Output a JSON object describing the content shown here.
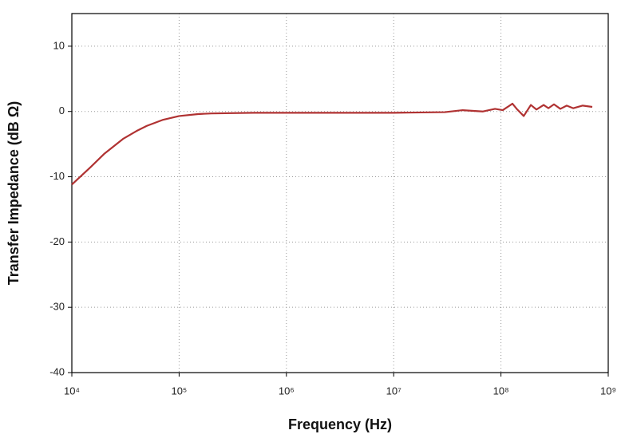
{
  "chart_data": {
    "type": "line",
    "xlabel": "Frequency (Hz)",
    "ylabel": "Transfer Impedance (dB Ω)",
    "xscale": "log",
    "grid": true,
    "xlim": [
      10000,
      1000000000
    ],
    "xticks": [
      {
        "value": 10000,
        "label": "10⁴"
      },
      {
        "value": 100000,
        "label": "10⁵"
      },
      {
        "value": 1000000,
        "label": "10⁶"
      },
      {
        "value": 10000000,
        "label": "10⁷"
      },
      {
        "value": 100000000,
        "label": "10⁸"
      },
      {
        "value": 1000000000,
        "label": "10⁹"
      }
    ],
    "ylim": [
      -40,
      15
    ],
    "yticks": [
      -40,
      -30,
      -20,
      -10,
      0,
      10
    ],
    "series": [
      {
        "color": "#b03232",
        "x": [
          10000,
          15000,
          20000,
          30000,
          40000,
          50000,
          70000,
          100000,
          150000,
          200000,
          500000,
          1000000,
          10000000,
          30000000,
          44000000,
          68000000,
          88000000,
          104000000,
          128000000,
          142000000,
          163000000,
          190000000,
          214000000,
          250000000,
          277000000,
          312000000,
          358000000,
          410000000,
          471000000,
          578000000,
          710000000
        ],
        "values": [
          -11.2,
          -8.5,
          -6.5,
          -4.2,
          -3,
          -2.2,
          -1.3,
          -0.7,
          -0.4,
          -0.3,
          -0.2,
          -0.2,
          -0.2,
          -0.1,
          0.2,
          0,
          0.4,
          0.2,
          1.2,
          0.3,
          -0.7,
          1.0,
          0.3,
          1.0,
          0.5,
          1.1,
          0.4,
          0.9,
          0.5,
          0.9,
          0.7
        ]
      }
    ]
  }
}
